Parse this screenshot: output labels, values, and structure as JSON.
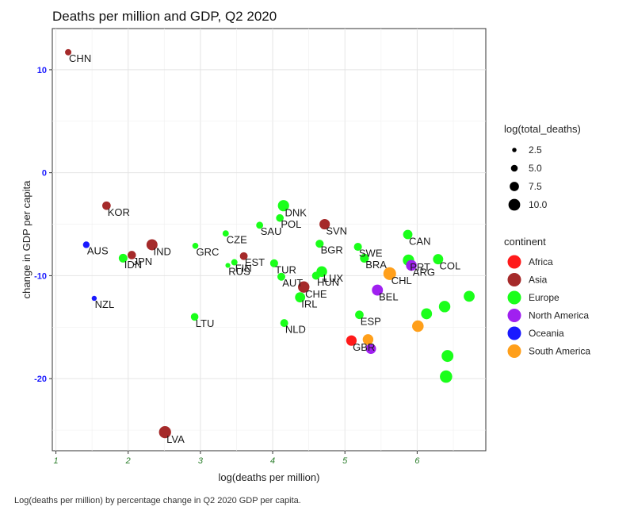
{
  "chart_data": {
    "type": "scatter",
    "title": "Deaths per million and GDP, Q2 2020",
    "xlabel": "log(deaths per million)",
    "ylabel": "change in GDP per capita",
    "xlim": [
      0.95,
      6.95
    ],
    "ylim": [
      -27,
      14
    ],
    "x_ticks": [
      1,
      2,
      3,
      4,
      5,
      6
    ],
    "y_ticks": [
      10,
      0,
      -10,
      -20
    ],
    "grid": true,
    "caption": "Log(deaths per million) by percentage change in Q2 2020 GDP per capita.",
    "legend": {
      "size_title": "log(total_deaths)",
      "size_entries": [
        {
          "label": "2.5",
          "value": 2.5
        },
        {
          "label": "5.0",
          "value": 5.0
        },
        {
          "label": "7.5",
          "value": 7.5
        },
        {
          "label": "10.0",
          "value": 10.0
        }
      ],
      "color_title": "continent",
      "color_entries": [
        {
          "label": "Africa",
          "color": "#ff1a1a"
        },
        {
          "label": "Asia",
          "color": "#a52a2a"
        },
        {
          "label": "Europe",
          "color": "#1aff1a"
        },
        {
          "label": "North America",
          "color": "#a020f0"
        },
        {
          "label": "Oceania",
          "color": "#1a1aff"
        },
        {
          "label": "South America",
          "color": "#ff9f1a"
        }
      ]
    },
    "points": [
      {
        "label": "",
        "x": 1.17,
        "y": 11.7,
        "size": 4.5,
        "continent": "Asia"
      },
      {
        "label": "",
        "x": 1.7,
        "y": -3.2,
        "size": 6.7,
        "continent": "Asia"
      },
      {
        "label": "",
        "x": 1.42,
        "y": -7.0,
        "size": 4.8,
        "continent": "Oceania"
      },
      {
        "label": "",
        "x": 1.53,
        "y": -12.2,
        "size": 3.2,
        "continent": "Oceania"
      },
      {
        "label": "",
        "x": 2.05,
        "y": -8.0,
        "size": 6.6,
        "continent": "Asia"
      },
      {
        "label": "",
        "x": 1.93,
        "y": -8.3,
        "size": 6.9,
        "continent": "Europe"
      },
      {
        "label": "",
        "x": 2.33,
        "y": -7.0,
        "size": 9.3,
        "continent": "Asia"
      },
      {
        "label": "",
        "x": 2.51,
        "y": -25.2,
        "size": 10.4,
        "continent": "Asia"
      },
      {
        "label": "",
        "x": 2.93,
        "y": -7.1,
        "size": 4.2,
        "continent": "Europe"
      },
      {
        "label": "",
        "x": 2.92,
        "y": -14.0,
        "size": 5.8,
        "continent": "Europe"
      },
      {
        "label": "",
        "x": 3.35,
        "y": -5.9,
        "size": 4.4,
        "continent": "Europe"
      },
      {
        "label": "",
        "x": 3.6,
        "y": -8.1,
        "size": 6.0,
        "continent": "Asia"
      },
      {
        "label": "",
        "x": 3.38,
        "y": -9.0,
        "size": 3.0,
        "continent": "Europe"
      },
      {
        "label": "",
        "x": 3.47,
        "y": -8.7,
        "size": 4.5,
        "continent": "Europe"
      },
      {
        "label": "",
        "x": 3.82,
        "y": -5.1,
        "size": 5.2,
        "continent": "Europe"
      },
      {
        "label": "",
        "x": 4.15,
        "y": -3.2,
        "size": 9.5,
        "continent": "Europe"
      },
      {
        "label": "",
        "x": 4.1,
        "y": -4.4,
        "size": 5.9,
        "continent": "Europe"
      },
      {
        "label": "",
        "x": 4.72,
        "y": -5.0,
        "size": 8.7,
        "continent": "Asia"
      },
      {
        "label": "",
        "x": 4.65,
        "y": -6.9,
        "size": 6.3,
        "continent": "Europe"
      },
      {
        "label": "",
        "x": 4.02,
        "y": -8.8,
        "size": 6.2,
        "continent": "Europe"
      },
      {
        "label": "",
        "x": 4.12,
        "y": -10.1,
        "size": 6.1,
        "continent": "Europe"
      },
      {
        "label": "",
        "x": 4.6,
        "y": -10.0,
        "size": 6.2,
        "continent": "Europe"
      },
      {
        "label": "",
        "x": 4.68,
        "y": -9.6,
        "size": 8.9,
        "continent": "Europe"
      },
      {
        "label": "",
        "x": 4.43,
        "y": -11.1,
        "size": 9.7,
        "continent": "Asia"
      },
      {
        "label": "",
        "x": 4.38,
        "y": -12.1,
        "size": 8.4,
        "continent": "Europe"
      },
      {
        "label": "",
        "x": 4.16,
        "y": -14.6,
        "size": 6.1,
        "continent": "Europe"
      },
      {
        "label": "",
        "x": 5.18,
        "y": -7.2,
        "size": 6.2,
        "continent": "Europe"
      },
      {
        "label": "",
        "x": 5.27,
        "y": -8.3,
        "size": 7.1,
        "continent": "Europe"
      },
      {
        "label": "",
        "x": 5.87,
        "y": -6.0,
        "size": 7.6,
        "continent": "Europe"
      },
      {
        "label": "",
        "x": 5.88,
        "y": -8.5,
        "size": 9.6,
        "continent": "Europe"
      },
      {
        "label": "",
        "x": 5.92,
        "y": -9.0,
        "size": 9.0,
        "continent": "North America"
      },
      {
        "label": "",
        "x": 6.29,
        "y": -8.4,
        "size": 8.5,
        "continent": "Europe"
      },
      {
        "label": "",
        "x": 5.62,
        "y": -9.8,
        "size": 11.0,
        "continent": "South America"
      },
      {
        "label": "",
        "x": 5.45,
        "y": -11.4,
        "size": 9.3,
        "continent": "North America"
      },
      {
        "label": "",
        "x": 5.2,
        "y": -13.8,
        "size": 6.7,
        "continent": "Europe"
      },
      {
        "label": "",
        "x": 5.09,
        "y": -16.3,
        "size": 8.7,
        "continent": "Africa"
      },
      {
        "label": "",
        "x": 5.32,
        "y": -16.2,
        "size": 8.9,
        "continent": "South America"
      },
      {
        "label": "",
        "x": 5.36,
        "y": -17.1,
        "size": 8.5,
        "continent": "North America"
      },
      {
        "label": "",
        "x": 6.01,
        "y": -14.9,
        "size": 9.8,
        "continent": "South America"
      },
      {
        "label": "",
        "x": 6.13,
        "y": -13.7,
        "size": 9.2,
        "continent": "Europe"
      },
      {
        "label": "",
        "x": 6.38,
        "y": -13.0,
        "size": 9.7,
        "continent": "Europe"
      },
      {
        "label": "",
        "x": 6.72,
        "y": -12.0,
        "size": 9.2,
        "continent": "Europe"
      },
      {
        "label": "",
        "x": 6.42,
        "y": -17.8,
        "size": 10.1,
        "continent": "Europe"
      },
      {
        "label": "",
        "x": 6.4,
        "y": -19.8,
        "size": 10.6,
        "continent": "Europe"
      }
    ],
    "point_labels": [
      "CHN",
      "KOR",
      "AUS",
      "NZL",
      "JPN",
      "IDN",
      "IND",
      "LVA",
      "GRC",
      "LTU",
      "CZE",
      "EST",
      "RUS",
      "FIN",
      "SAU",
      "DNK",
      "POL",
      "SVN",
      "BGR",
      "TUR",
      "AUT",
      "HUN",
      "LUX",
      "CHE",
      "IRL",
      "NLD",
      "SWE",
      "BRA",
      "CAN",
      "PRT",
      "ARG",
      "COL",
      "CHL",
      "BEL",
      "ESP",
      "GBR"
    ]
  }
}
